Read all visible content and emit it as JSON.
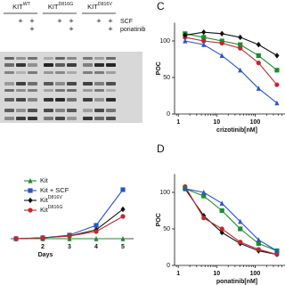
{
  "blot": {
    "treatments": [
      "SCF",
      "ponatinib"
    ],
    "sign": "+",
    "groups": [
      {
        "base": "KIT",
        "sup": "WT",
        "SCF": [
          false,
          true,
          true
        ],
        "ponatinib": [
          false,
          false,
          true
        ]
      },
      {
        "base": "KIT",
        "sup": "D816G",
        "SCF": [
          false,
          true,
          true
        ],
        "ponatinib": [
          false,
          false,
          true
        ]
      },
      {
        "base": "KIT",
        "sup": "D816V",
        "SCF": [
          false,
          true,
          true
        ],
        "ponatinib": [
          false,
          false,
          true
        ]
      }
    ]
  },
  "chart_data": [
    {
      "type": "line",
      "panel_label": "C",
      "ylabel": "POC",
      "xlabel": "crizotinib[nM]",
      "xscale": "log",
      "x": [
        1.5,
        4.6,
        13.7,
        41,
        123,
        370
      ],
      "xlim": [
        0.8,
        600
      ],
      "xticks": [
        1,
        10,
        100
      ],
      "ylim": [
        0,
        125
      ],
      "yticks": [
        0,
        50,
        100
      ],
      "legend": false,
      "series": [
        {
          "name": "green",
          "color": "#1e8c2e",
          "marker": "square",
          "values": [
            110,
            105,
            100,
            95,
            80,
            60
          ]
        },
        {
          "name": "red",
          "color": "#c0282d",
          "marker": "circle",
          "values": [
            105,
            100,
            97,
            90,
            70,
            40
          ]
        },
        {
          "name": "black",
          "color": "#111111",
          "marker": "diamond",
          "values": [
            108,
            112,
            110,
            105,
            95,
            80
          ]
        },
        {
          "name": "blue",
          "color": "#2a55c4",
          "marker": "triangle",
          "values": [
            100,
            95,
            80,
            60,
            35,
            15
          ]
        }
      ]
    },
    {
      "type": "line",
      "xlabel": "Days",
      "x": [
        1,
        2,
        3,
        4,
        5
      ],
      "xlim": [
        0.8,
        5.4
      ],
      "xticks": [
        2,
        3,
        4,
        5
      ],
      "ylim": [
        0,
        3.5
      ],
      "legend": true,
      "series": [
        {
          "name": "Kit",
          "color": "#1e8c2e",
          "marker": "triangle",
          "values": [
            0,
            0,
            0,
            0,
            0
          ]
        },
        {
          "name": "Kit + SCF",
          "color": "#2a55c4",
          "marker": "square",
          "values": [
            0,
            0.05,
            0.2,
            0.75,
            2.75
          ]
        },
        {
          "name": "Kit",
          "name_sup": "D816V",
          "color": "#111111",
          "marker": "diamond",
          "values": [
            0,
            0.05,
            0.15,
            0.5,
            1.65
          ]
        },
        {
          "name": "Kit",
          "name_sup": "D816G",
          "color": "#c0282d",
          "marker": "circle",
          "values": [
            0,
            0.05,
            0.15,
            0.4,
            1.25
          ]
        }
      ]
    },
    {
      "type": "line",
      "panel_label": "D",
      "ylabel": "POC",
      "xlabel": "ponatinib[nM]",
      "xscale": "log",
      "x": [
        1.5,
        4.6,
        13.7,
        41,
        123,
        370
      ],
      "xlim": [
        0.8,
        600
      ],
      "xticks": [
        1,
        10,
        100
      ],
      "ylim": [
        0,
        125
      ],
      "yticks": [
        0,
        50,
        100
      ],
      "legend": false,
      "series": [
        {
          "name": "black",
          "color": "#111111",
          "marker": "diamond",
          "values": [
            105,
            68,
            45,
            30,
            20,
            15
          ]
        },
        {
          "name": "red",
          "color": "#c0282d",
          "marker": "circle",
          "values": [
            108,
            65,
            50,
            32,
            22,
            15
          ]
        },
        {
          "name": "green",
          "color": "#1e8c2e",
          "marker": "square",
          "values": [
            105,
            95,
            75,
            50,
            30,
            20
          ]
        },
        {
          "name": "blue",
          "color": "#2a55c4",
          "marker": "triangle",
          "values": [
            105,
            100,
            85,
            60,
            35,
            20
          ]
        }
      ]
    }
  ]
}
